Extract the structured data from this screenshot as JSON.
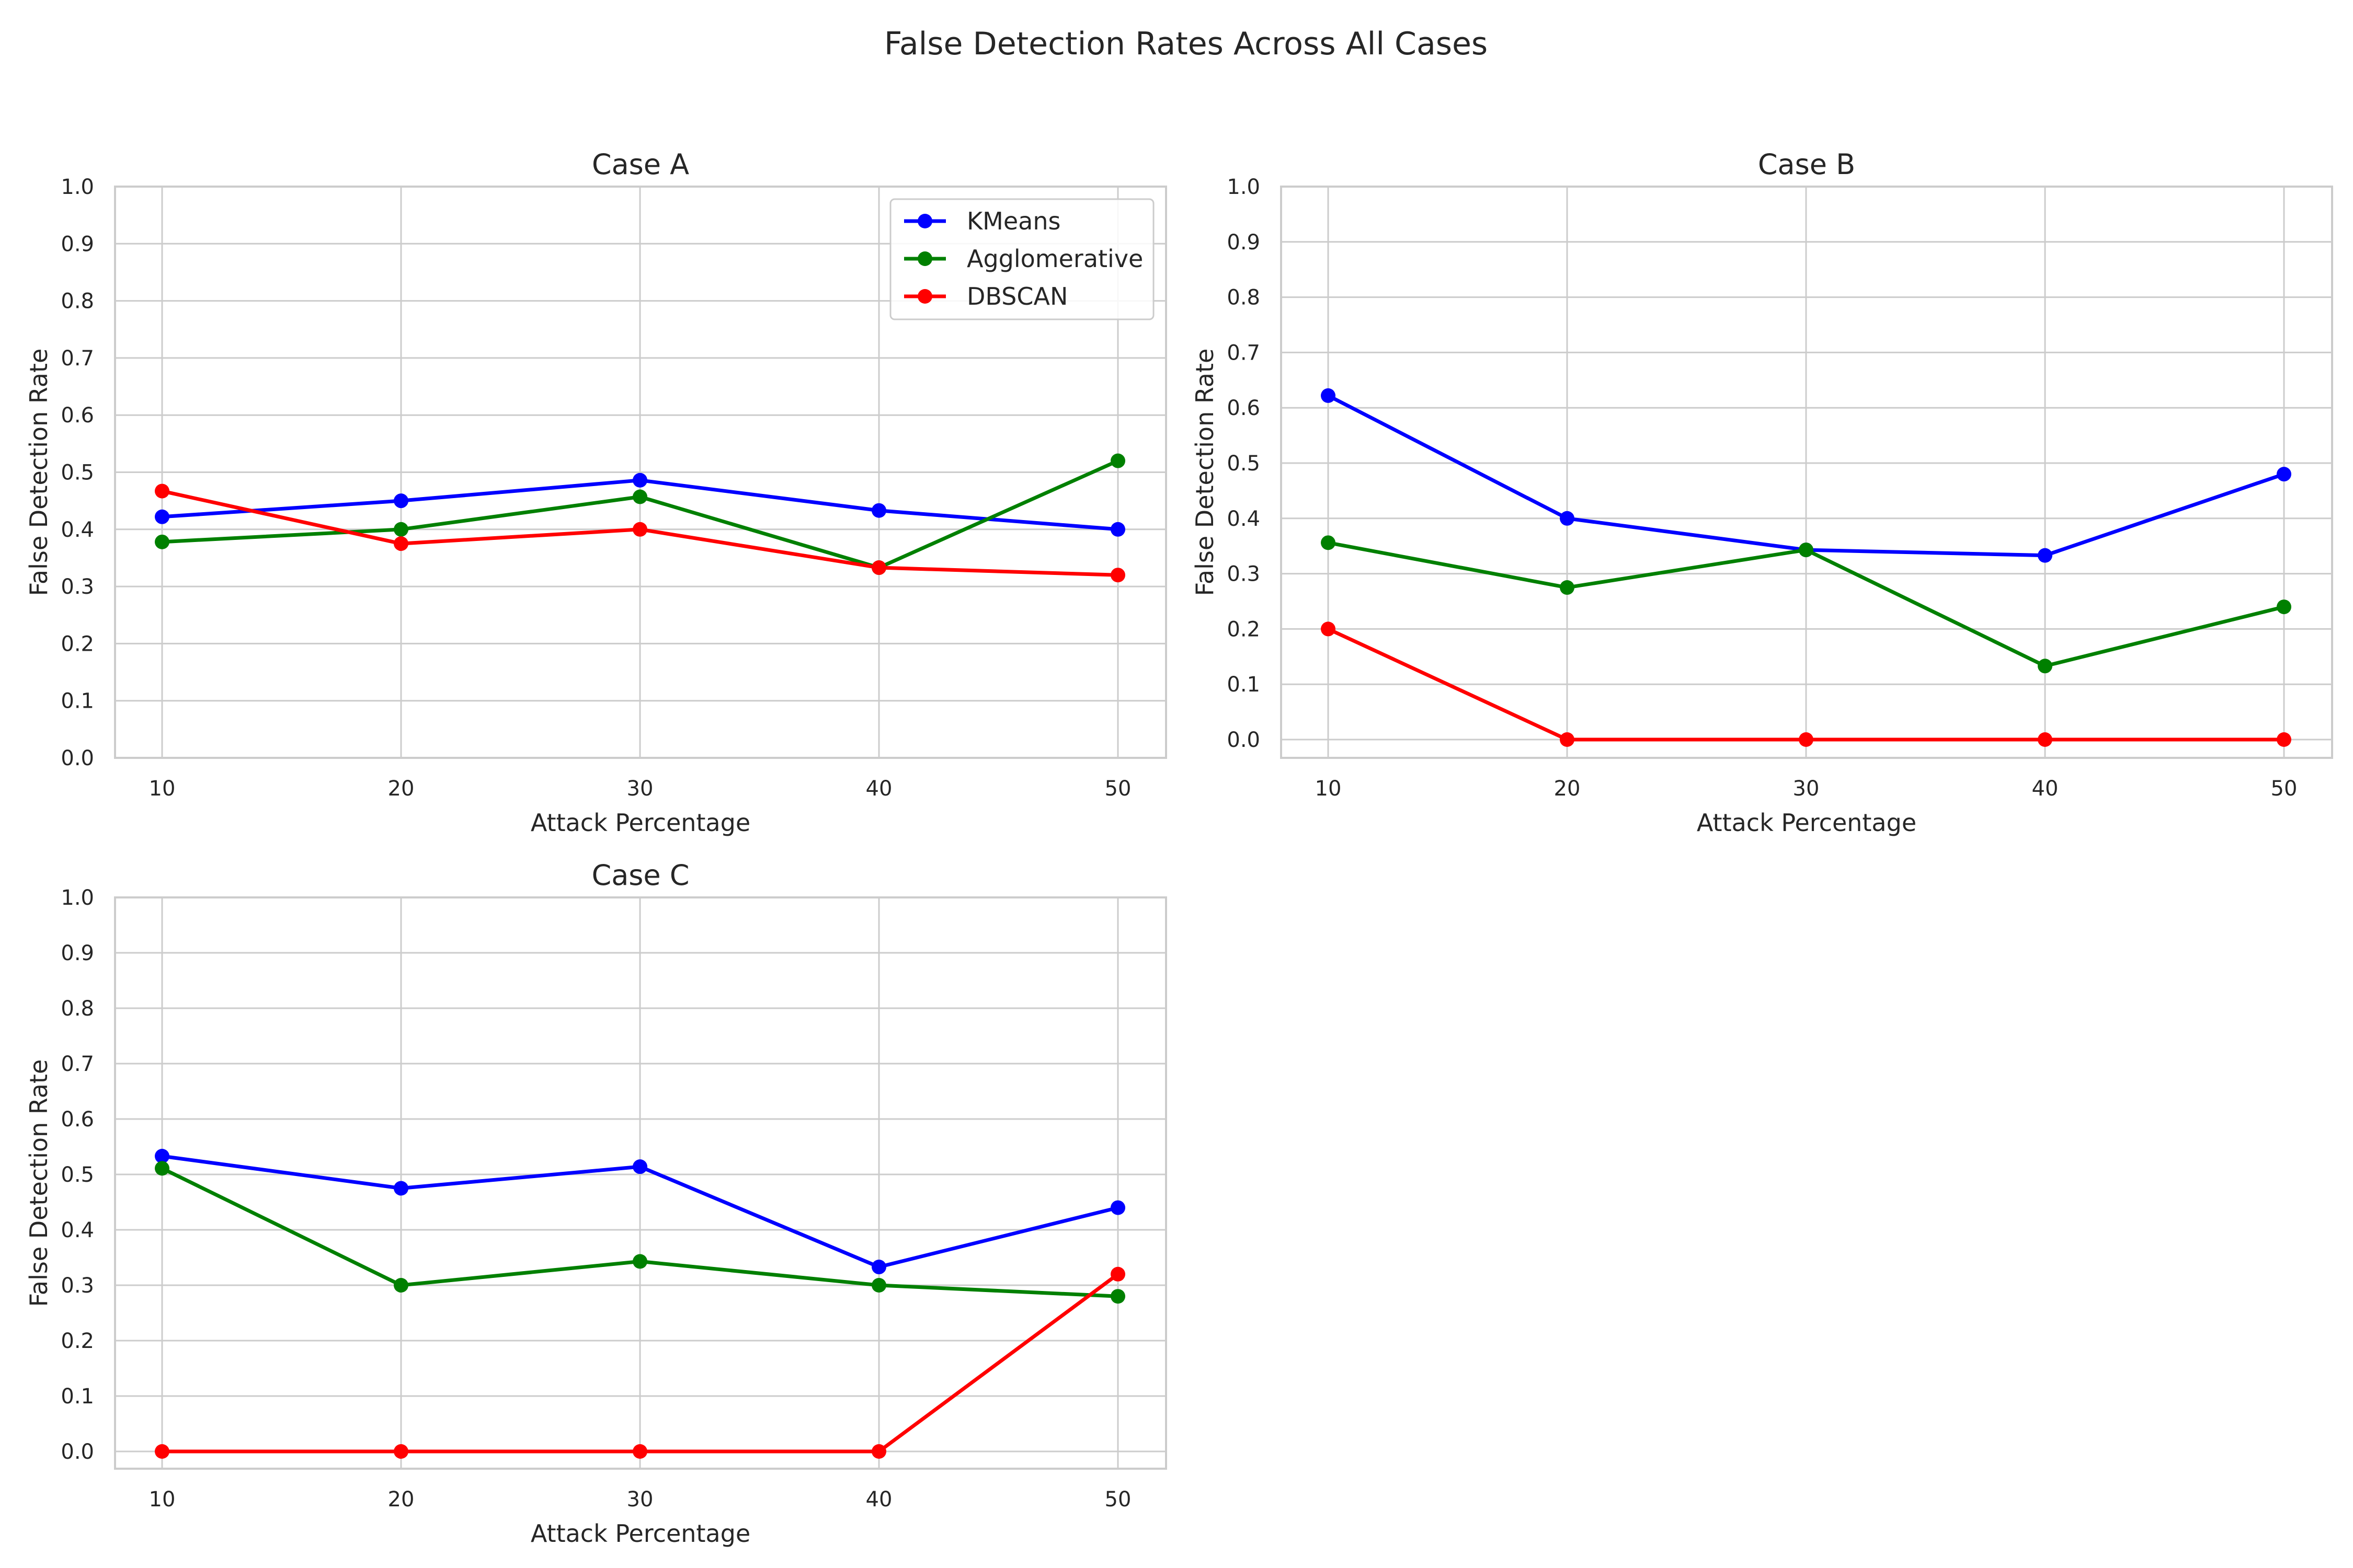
{
  "figure": {
    "title": "False Detection Rates Across All Cases"
  },
  "colors": {
    "KMeans": "#0000ff",
    "Agglomerative": "#008000",
    "DBSCAN": "#ff0000",
    "grid": "#cccccc",
    "frame": "#cccccc"
  },
  "chart_data": [
    {
      "type": "line",
      "title": "Case A",
      "xlabel": "Attack Percentage",
      "ylabel": "False Detection Rate",
      "x": [
        10,
        20,
        30,
        40,
        50
      ],
      "xticks": [
        "10",
        "20",
        "30",
        "40",
        "50"
      ],
      "yticks": [
        "0.0",
        "0.1",
        "0.2",
        "0.3",
        "0.4",
        "0.5",
        "0.6",
        "0.7",
        "0.8",
        "0.9",
        "1.0"
      ],
      "ylim": [
        0,
        1.0
      ],
      "grid": true,
      "legend": "upper-right",
      "series": [
        {
          "name": "KMeans",
          "values": [
            0.422,
            0.45,
            0.486,
            0.433,
            0.4
          ]
        },
        {
          "name": "Agglomerative",
          "values": [
            0.378,
            0.4,
            0.457,
            0.333,
            0.52
          ]
        },
        {
          "name": "DBSCAN",
          "values": [
            0.467,
            0.375,
            0.4,
            0.333,
            0.32
          ]
        }
      ]
    },
    {
      "type": "line",
      "title": "Case B",
      "xlabel": "Attack Percentage",
      "ylabel": "False Detection Rate",
      "x": [
        10,
        20,
        30,
        40,
        50
      ],
      "xticks": [
        "10",
        "20",
        "30",
        "40",
        "50"
      ],
      "yticks": [
        "0.0",
        "0.1",
        "0.2",
        "0.3",
        "0.4",
        "0.5",
        "0.6",
        "0.7",
        "0.8",
        "0.9",
        "1.0"
      ],
      "ylim": [
        -0.03,
        1.0
      ],
      "grid": true,
      "legend": "none",
      "series": [
        {
          "name": "KMeans",
          "values": [
            0.622,
            0.4,
            0.343,
            0.333,
            0.48
          ]
        },
        {
          "name": "Agglomerative",
          "values": [
            0.356,
            0.275,
            0.343,
            0.133,
            0.24
          ]
        },
        {
          "name": "DBSCAN",
          "values": [
            0.2,
            0.0,
            0.0,
            0.0,
            0.0
          ]
        }
      ]
    },
    {
      "type": "line",
      "title": "Case C",
      "xlabel": "Attack Percentage",
      "ylabel": "False Detection Rate",
      "x": [
        10,
        20,
        30,
        40,
        50
      ],
      "xticks": [
        "10",
        "20",
        "30",
        "40",
        "50"
      ],
      "yticks": [
        "0.0",
        "0.1",
        "0.2",
        "0.3",
        "0.4",
        "0.5",
        "0.6",
        "0.7",
        "0.8",
        "0.9",
        "1.0"
      ],
      "ylim": [
        -0.03,
        1.0
      ],
      "grid": true,
      "legend": "none",
      "series": [
        {
          "name": "KMeans",
          "values": [
            0.533,
            0.475,
            0.514,
            0.333,
            0.44
          ]
        },
        {
          "name": "Agglomerative",
          "values": [
            0.511,
            0.3,
            0.343,
            0.3,
            0.28
          ]
        },
        {
          "name": "DBSCAN",
          "values": [
            0.0,
            0.0,
            0.0,
            0.0,
            0.32
          ]
        }
      ]
    }
  ]
}
